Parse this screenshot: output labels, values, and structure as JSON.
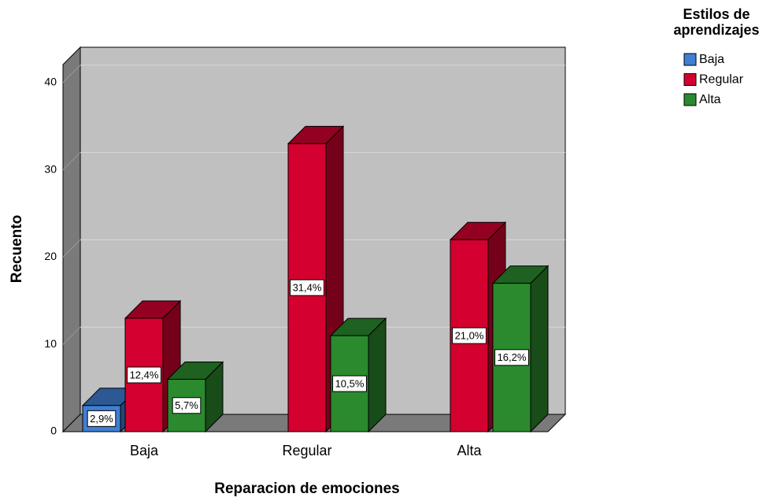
{
  "chart_data": {
    "type": "bar3d",
    "x_label": "Reparacion de emociones",
    "y_label": "Recuento",
    "legend_title": "Estilos de aprendizajes",
    "categories": [
      "Baja",
      "Regular",
      "Alta"
    ],
    "series": [
      {
        "name": "Baja",
        "color": "#3f7fd4",
        "values": [
          3,
          null,
          null
        ],
        "value_labels": [
          "2,9%",
          null,
          null
        ]
      },
      {
        "name": "Regular",
        "color": "#d4002f",
        "values": [
          13,
          33,
          22
        ],
        "value_labels": [
          "12,4%",
          "31,4%",
          "21,0%"
        ]
      },
      {
        "name": "Alta",
        "color": "#2b8a2e",
        "values": [
          6,
          11,
          17
        ],
        "value_labels": [
          "5,7%",
          "10,5%",
          "16,2%"
        ]
      }
    ],
    "ylim": [
      0,
      42
    ],
    "yticks": [
      0,
      10,
      20,
      30,
      40
    ],
    "grid": true
  }
}
